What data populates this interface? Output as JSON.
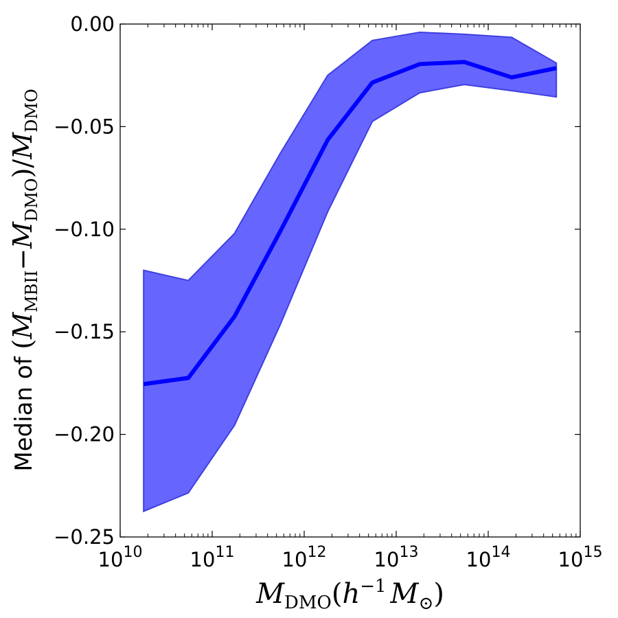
{
  "chart_data": {
    "type": "line",
    "x_scale": "log",
    "xlim": [
      10000000000.0,
      1000000000000000.0
    ],
    "ylim": [
      -0.25,
      0.0
    ],
    "grid": false,
    "colors": {
      "line": "#0000ff",
      "band": "#6666ff",
      "band_edge": "#3f3fe0"
    },
    "xticks": [
      {
        "value": 10000000000.0,
        "base": "10",
        "exp": "10"
      },
      {
        "value": 100000000000.0,
        "base": "10",
        "exp": "11"
      },
      {
        "value": 1000000000000.0,
        "base": "10",
        "exp": "12"
      },
      {
        "value": 10000000000000.0,
        "base": "10",
        "exp": "13"
      },
      {
        "value": 100000000000000.0,
        "base": "10",
        "exp": "14"
      },
      {
        "value": 1000000000000000.0,
        "base": "10",
        "exp": "15"
      }
    ],
    "yticks": [
      {
        "value": 0.0,
        "label": "0.00"
      },
      {
        "value": -0.05,
        "label": "−0.05"
      },
      {
        "value": -0.1,
        "label": "−0.10"
      },
      {
        "value": -0.15,
        "label": "−0.15"
      },
      {
        "value": -0.2,
        "label": "−0.20"
      },
      {
        "value": -0.25,
        "label": "−0.25"
      }
    ],
    "xlabel": {
      "main": "M",
      "sub": "DMO",
      "paren_open": "(",
      "h": "h",
      "h_exp": "−1",
      "msun": "M",
      "sun_sub": "⊙",
      "paren_close": ")"
    },
    "ylabel": {
      "prefix": "Median of ",
      "open": "(",
      "m1": "M",
      "sub1": "MBII",
      "minus": "−",
      "m2": "M",
      "sub2": "DMO",
      "close": ")/",
      "m3": "M",
      "sub3": "DMO"
    },
    "x": [
      18000000000.0,
      55000000000.0,
      175000000000.0,
      550000000000.0,
      1800000000000.0,
      5500000000000.0,
      18000000000000.0,
      55000000000000.0,
      180000000000000.0,
      550000000000000.0
    ],
    "series": [
      {
        "values": [
          -0.1755,
          -0.1725,
          -0.1425,
          -0.101,
          -0.0565,
          -0.0285,
          -0.0195,
          -0.0185,
          -0.026,
          -0.0215
        ]
      }
    ],
    "band": {
      "upper": [
        -0.12,
        -0.125,
        -0.102,
        -0.063,
        -0.025,
        -0.008,
        -0.004,
        -0.005,
        -0.0065,
        -0.019
      ],
      "lower": [
        -0.2375,
        -0.2285,
        -0.1955,
        -0.1465,
        -0.0915,
        -0.0475,
        -0.0335,
        -0.0295,
        -0.0325,
        -0.0355
      ]
    }
  }
}
